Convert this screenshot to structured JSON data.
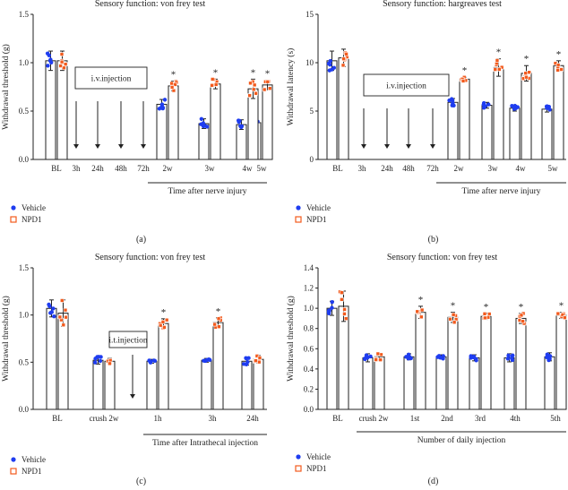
{
  "colors": {
    "vehicle": "#1f3df0",
    "npd1": "#f25a1d",
    "axis": "#222222"
  },
  "legend": {
    "vehicle": "Vehicle",
    "npd1": "NPD1"
  },
  "chart_data": [
    {
      "type": "bar",
      "panel_label": "(a)",
      "title": "Sensory function: von frey test",
      "ylabel": "Withdrawal threshold (g)",
      "xlabel": "Time after nerve injury",
      "ylim": [
        0,
        1.5
      ],
      "yticks": [
        "0.0",
        "0.5",
        "1.0",
        "1.5"
      ],
      "categories": [
        "BL",
        "3h",
        "24h",
        "48h",
        "72h",
        "2w",
        "3w",
        "4w",
        "5w"
      ],
      "annotation": "i.v.injection",
      "series": [
        {
          "name": "Vehicle",
          "values": [
            1.02,
            null,
            null,
            null,
            null,
            0.57,
            0.37,
            0.36,
            0.38
          ],
          "errors": [
            0.1,
            null,
            null,
            null,
            null,
            0.05,
            0.05,
            0.05,
            0.04
          ]
        },
        {
          "name": "NPD1",
          "values": [
            1.02,
            null,
            null,
            null,
            null,
            0.76,
            0.78,
            0.73,
            0.77
          ],
          "errors": [
            0.1,
            null,
            null,
            null,
            null,
            0.05,
            0.05,
            0.1,
            0.05
          ]
        }
      ],
      "significance": [
        "",
        "",
        "",
        "",
        "",
        "*",
        "*",
        "*",
        "*"
      ]
    },
    {
      "type": "bar",
      "panel_label": "(b)",
      "title": "Sensory function: hargreaves test",
      "ylabel": "Withdrawal latency (s)",
      "xlabel": "Time after nerve injury",
      "ylim": [
        0,
        15
      ],
      "yticks": [
        "0",
        "5",
        "10",
        "15"
      ],
      "categories": [
        "BL",
        "3h",
        "24h",
        "48h",
        "72h",
        "2w",
        "3w",
        "4w",
        "5w"
      ],
      "annotation": "i.v.injection",
      "series": [
        {
          "name": "Vehicle",
          "values": [
            10.2,
            null,
            null,
            null,
            null,
            5.9,
            5.6,
            5.3,
            5.2
          ],
          "errors": [
            1.0,
            null,
            null,
            null,
            null,
            0.4,
            0.3,
            0.3,
            0.3
          ]
        },
        {
          "name": "NPD1",
          "values": [
            10.5,
            null,
            null,
            null,
            null,
            8.3,
            9.5,
            8.9,
            9.7
          ],
          "errors": [
            0.9,
            null,
            null,
            null,
            null,
            0.2,
            0.9,
            0.8,
            0.5
          ]
        }
      ],
      "significance": [
        "",
        "",
        "",
        "",
        "",
        "*",
        "*",
        "*",
        "*"
      ]
    },
    {
      "type": "bar",
      "panel_label": "(c)",
      "title": "Sensory function: von frey test",
      "ylabel": "Withdrawal threshold (g)",
      "xlabel": "Time after Intrathecal injection",
      "ylim": [
        0,
        1.5
      ],
      "yticks": [
        "0.0",
        "0.5",
        "1.0",
        "1.5"
      ],
      "categories": [
        "BL",
        "crush 2w",
        "1h",
        "3h",
        "24h"
      ],
      "annotation": "i.t.injection",
      "series": [
        {
          "name": "Vehicle",
          "values": [
            1.07,
            0.52,
            0.51,
            0.52,
            0.51
          ],
          "errors": [
            0.09,
            0.04,
            0.02,
            0.02,
            0.04
          ]
        },
        {
          "name": "NPD1",
          "values": [
            1.02,
            0.51,
            0.91,
            0.92,
            0.53
          ],
          "errors": [
            0.14,
            0.03,
            0.05,
            0.05,
            0.04
          ]
        }
      ],
      "significance": [
        "",
        "",
        "*",
        "*",
        ""
      ]
    },
    {
      "type": "bar",
      "panel_label": "(d)",
      "title": "Sensory function: von frey test",
      "ylabel": "Withdrawal threshold (g)",
      "xlabel": "Number of daily injection",
      "ylim": [
        0,
        1.4
      ],
      "yticks": [
        "0.0",
        "0.2",
        "0.4",
        "0.6",
        "0.8",
        "1.0",
        "1.2",
        "1.4"
      ],
      "categories": [
        "BL",
        "crush 2w",
        "1st",
        "2nd",
        "3rd",
        "4th",
        "5th"
      ],
      "series": [
        {
          "name": "Vehicle",
          "values": [
            1.0,
            0.51,
            0.52,
            0.52,
            0.51,
            0.51,
            0.52
          ],
          "errors": [
            0.07,
            0.04,
            0.03,
            0.02,
            0.03,
            0.04,
            0.04
          ]
        },
        {
          "name": "NPD1",
          "values": [
            1.02,
            0.52,
            0.96,
            0.91,
            0.92,
            0.9,
            0.93
          ],
          "errors": [
            0.15,
            0.03,
            0.06,
            0.05,
            0.03,
            0.05,
            0.03
          ]
        }
      ],
      "significance": [
        "",
        "",
        "*",
        "*",
        "*",
        "*",
        "*"
      ]
    }
  ]
}
